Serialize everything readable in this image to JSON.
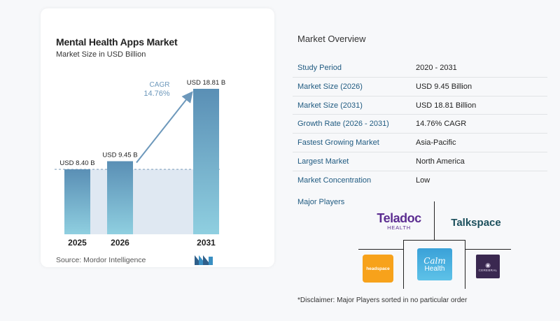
{
  "chart_data": {
    "type": "bar",
    "title": "Mental Health Apps Market",
    "subtitle": "Market Size in USD Billion",
    "categories": [
      "2025",
      "2026",
      "2031"
    ],
    "values": [
      8.4,
      9.45,
      18.81
    ],
    "data_labels": [
      "USD 8.40 B",
      "USD 9.45 B",
      "USD 18.81 B"
    ],
    "cagr_label": "CAGR",
    "cagr_value": "14.76%",
    "xlabel": "",
    "ylabel": "",
    "ylim": [
      0,
      18.81
    ],
    "grid": false,
    "legend": "none",
    "colors": {
      "bar_top": "#5a8fb5",
      "bar_bottom": "#8fcfe0",
      "arrow": "#6d98bb",
      "band": "#dfe8f2",
      "cagr_text": "#6d98bb"
    }
  },
  "source": "Source:   Mordor Intelligence",
  "overview": {
    "title": "Market Overview",
    "rows": [
      {
        "label": "Study Period",
        "value": "2020 - 2031"
      },
      {
        "label": "Market Size (2026)",
        "value": "USD 9.45 Billion"
      },
      {
        "label": "Market Size (2031)",
        "value": "USD 18.81 Billion"
      },
      {
        "label": "Growth Rate (2026 - 2031)",
        "value": "14.76% CAGR"
      },
      {
        "label": "Fastest Growing Market",
        "value": "Asia-Pacific"
      },
      {
        "label": "Largest Market",
        "value": "North America"
      },
      {
        "label": "Market Concentration",
        "value": "Low"
      }
    ],
    "players_title": "Major Players",
    "players": {
      "teladoc": "Teladoc",
      "teladoc_sub": "HEALTH",
      "talkspace": "Talkspace",
      "headspace": "headspace",
      "calm": "Calm",
      "calm_sub": "Health",
      "cerebral": "CEREBRAL"
    },
    "disclaimer": "*Disclaimer: Major Players sorted in no particular order"
  }
}
